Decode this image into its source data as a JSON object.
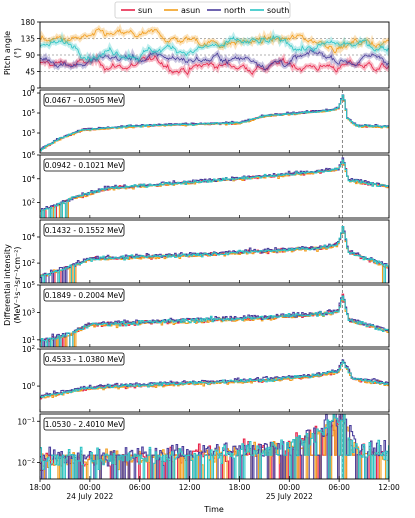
{
  "chart_data": {
    "type": "line",
    "legend": {
      "placement": "top-center",
      "entries": [
        {
          "name": "sun",
          "color": "#e8244a"
        },
        {
          "name": "asun",
          "color": "#f29e1e"
        },
        {
          "name": "north",
          "color": "#4b3e9c"
        },
        {
          "name": "south",
          "color": "#2bc4c4"
        }
      ]
    },
    "xlabel": "Time",
    "x_ticks": [
      "18:00",
      "00:00",
      "06:00",
      "12:00",
      "18:00",
      "00:00",
      "06:00",
      "12:00"
    ],
    "x_tick_hours": [
      0,
      6,
      12,
      18,
      24,
      30,
      36,
      42
    ],
    "x_date_labels": [
      {
        "hour": 6,
        "text": "24 July 2022"
      },
      {
        "hour": 30,
        "text": "25 July 2022"
      }
    ],
    "x_range_hours": [
      0,
      42
    ],
    "event_line_hour": 36.4,
    "ylabel_shared": "Differential intensity",
    "ylabel_shared_unit": "(MeV⁻¹s⁻¹sr⁻¹cm⁻²)",
    "grid": false,
    "panels": [
      {
        "id": "pitch",
        "ylabel": "Pitch angle",
        "yunit": "(°)",
        "scale": "linear",
        "ylim": [
          0,
          180
        ],
        "yticks": [
          {
            "v": 0,
            "t": "0"
          },
          {
            "v": 45,
            "t": "45"
          },
          {
            "v": 90,
            "t": "90"
          },
          {
            "v": 135,
            "t": "135"
          },
          {
            "v": 180,
            "t": "180"
          }
        ],
        "series": [
          {
            "name": "sun",
            "base": 62,
            "noise": 30
          },
          {
            "name": "asun",
            "base": 128,
            "noise": 30
          },
          {
            "name": "north",
            "base": 80,
            "noise": 35
          },
          {
            "name": "south",
            "base": 112,
            "noise": 35
          }
        ]
      },
      {
        "id": "e1",
        "energy": "0.0467 - 0.0505 MeV",
        "scale": "log",
        "ylim": [
          10,
          20000000
        ],
        "yticks": [
          {
            "v": 1000,
            "t": "10",
            "sup": "3"
          },
          {
            "v": 100000,
            "t": "10",
            "sup": "5"
          },
          {
            "v": 10000000,
            "t": "10",
            "sup": "7"
          }
        ],
        "profile": [
          [
            0,
            20
          ],
          [
            2,
            200
          ],
          [
            5,
            2000
          ],
          [
            12,
            5000
          ],
          [
            24,
            10000
          ],
          [
            27,
            50000
          ],
          [
            34,
            150000
          ],
          [
            35.8,
            250000
          ],
          [
            36.4,
            8000000
          ],
          [
            36.9,
            30000
          ],
          [
            38,
            5000
          ],
          [
            42,
            4000
          ]
        ],
        "noise": 0.2,
        "floor": 0
      },
      {
        "id": "e2",
        "energy": "0.0942 - 0.1021 MeV",
        "scale": "log",
        "ylim": [
          5,
          1000000
        ],
        "yticks": [
          {
            "v": 100,
            "t": "10",
            "sup": "2"
          },
          {
            "v": 10000,
            "t": "10",
            "sup": "4"
          },
          {
            "v": 1000000,
            "t": "10",
            "sup": "6"
          }
        ],
        "profile": [
          [
            0,
            20
          ],
          [
            2,
            60
          ],
          [
            4,
            250
          ],
          [
            8,
            1500
          ],
          [
            18,
            5000
          ],
          [
            27,
            15000
          ],
          [
            34,
            40000
          ],
          [
            35.8,
            60000
          ],
          [
            36.4,
            400000
          ],
          [
            37,
            8000
          ],
          [
            42,
            2000
          ]
        ],
        "noise": 0.3,
        "floor": 30
      },
      {
        "id": "e3",
        "energy": "0.1432 - 0.1552 MeV",
        "scale": "log",
        "ylim": [
          3,
          200000
        ],
        "yticks": [
          {
            "v": 100,
            "t": "10",
            "sup": "2"
          },
          {
            "v": 10000,
            "t": "10",
            "sup": "4"
          }
        ],
        "profile": [
          [
            0,
            10
          ],
          [
            3,
            40
          ],
          [
            6,
            200
          ],
          [
            18,
            400
          ],
          [
            27,
            800
          ],
          [
            34,
            1500
          ],
          [
            35.8,
            2500
          ],
          [
            36.4,
            60000
          ],
          [
            37,
            700
          ],
          [
            42,
            50
          ]
        ],
        "noise": 0.3,
        "floor": 15
      },
      {
        "id": "e4",
        "energy": "0.1849 - 0.2004 MeV",
        "scale": "log",
        "ylim": [
          3,
          100000
        ],
        "yticks": [
          {
            "v": 10,
            "t": "10",
            "sup": "1"
          },
          {
            "v": 1000,
            "t": "10",
            "sup": "3"
          },
          {
            "v": 100000,
            "t": "10",
            "sup": "5"
          }
        ],
        "profile": [
          [
            0,
            8
          ],
          [
            3,
            20
          ],
          [
            6,
            120
          ],
          [
            18,
            250
          ],
          [
            27,
            400
          ],
          [
            34,
            800
          ],
          [
            35.8,
            1200
          ],
          [
            36.4,
            20000
          ],
          [
            37,
            300
          ],
          [
            42,
            40
          ]
        ],
        "noise": 0.35,
        "floor": 8
      },
      {
        "id": "e5",
        "energy": "0.4533 - 1.0380 MeV",
        "scale": "log",
        "ylim": [
          0.04,
          100
        ],
        "yticks": [
          {
            "v": 1,
            "t": "10",
            "sup": "0"
          },
          {
            "v": 100,
            "t": "10",
            "sup": "2"
          }
        ],
        "profile": [
          [
            0,
            0.25
          ],
          [
            6,
            0.8
          ],
          [
            18,
            1.4
          ],
          [
            27,
            2
          ],
          [
            33,
            3.5
          ],
          [
            35.8,
            6
          ],
          [
            36.4,
            25
          ],
          [
            37.5,
            2.5
          ],
          [
            42,
            1.2
          ]
        ],
        "noise": 0.2,
        "floor": 0
      },
      {
        "id": "e6",
        "energy": "1.0530 - 2.4010 MeV",
        "scale": "log",
        "ylim": [
          0.004,
          0.15
        ],
        "yticks": [
          {
            "v": 0.01,
            "t": "10",
            "sup": "−2"
          },
          {
            "v": 0.1,
            "t": "10",
            "sup": "−1"
          }
        ],
        "profile": [
          [
            0,
            0.012
          ],
          [
            12,
            0.013
          ],
          [
            24,
            0.018
          ],
          [
            30,
            0.025
          ],
          [
            36.4,
            0.12
          ],
          [
            38,
            0.02
          ],
          [
            42,
            0.015
          ]
        ],
        "noise": 0.5,
        "floor": 0
      }
    ]
  }
}
